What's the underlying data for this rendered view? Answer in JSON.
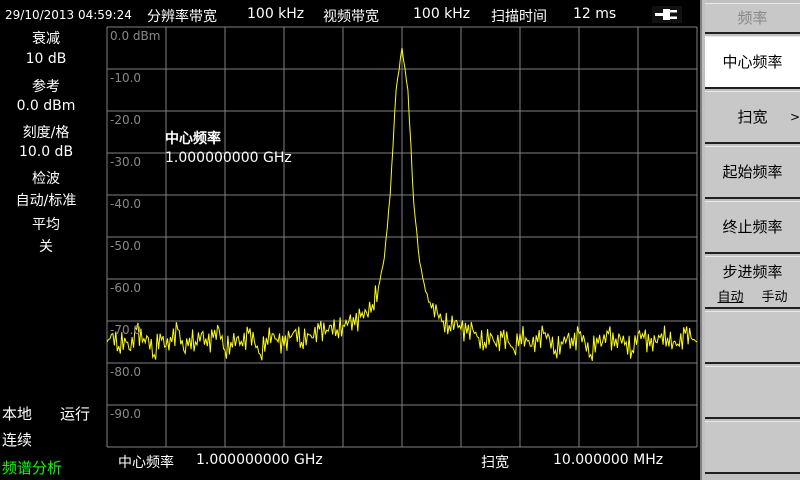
{
  "header": {
    "datetime": "29/10/2013  04:59:24",
    "rbw_label": "分辨率带宽",
    "rbw_value": "100 kHz",
    "vbw_label": "视频带宽",
    "vbw_value": "100 kHz",
    "sweep_time_label": "扫描时间",
    "sweep_time_value": "12 ms",
    "power_icon": "plug-icon"
  },
  "left_panel": {
    "atten_label": "衰减",
    "atten_value": "10 dB",
    "ref_label": "参考",
    "ref_value": "0.0 dBm",
    "scale_label": "刻度/格",
    "scale_value": "10.0 dB",
    "detector_label": "检波",
    "detector_value": "自动/标准",
    "average_label": "平均",
    "average_value": "关",
    "local": "本地",
    "run": "运行",
    "continuous": "连续",
    "mode": "频谱分析",
    "mode_color": "#00ff00"
  },
  "overlay": {
    "label": "中心频率",
    "value": "1.000000000 GHz"
  },
  "footer": {
    "center_label": "中心频率",
    "center_value": "1.000000000 GHz",
    "span_label": "扫宽",
    "span_value": "10.000000 MHz"
  },
  "softkeys": {
    "title": "频率",
    "items": [
      {
        "label": "中心频率",
        "active": true
      },
      {
        "label": "扫宽",
        "arrow": ">"
      },
      {
        "label": "起始频率"
      },
      {
        "label": "终止频率"
      },
      {
        "label": "步进频率",
        "opt1": "自动",
        "opt2": "手动"
      },
      {
        "label": ""
      },
      {
        "label": ""
      },
      {
        "label": ""
      }
    ]
  },
  "chart_data": {
    "type": "line",
    "trace_color": "#ffff00",
    "grid": true,
    "ylim": [
      -100,
      0
    ],
    "y_ticks": [
      "0.0 dBm",
      "-10.0",
      "-20.0",
      "-30.0",
      "-40.0",
      "-50.0",
      "-60.0",
      "-70.0",
      "-80.0",
      "-90.0"
    ],
    "x_range_mhz": [
      995,
      1005
    ],
    "values": [
      -75,
      -73,
      -76,
      -74,
      -77,
      -72,
      -75,
      -74,
      -78,
      -73,
      -76,
      -75,
      -72,
      -77,
      -74,
      -75,
      -73,
      -76,
      -74,
      -72,
      -77,
      -75,
      -74,
      -76,
      -73,
      -75,
      -78,
      -74,
      -73,
      -75,
      -76,
      -74,
      -72,
      -75,
      -73,
      -74,
      -72,
      -73,
      -71,
      -72,
      -71,
      -70,
      -71,
      -69,
      -68,
      -66,
      -62,
      -55,
      -40,
      -15,
      -5,
      -15,
      -42,
      -56,
      -63,
      -67,
      -68,
      -70,
      -71,
      -70,
      -72,
      -73,
      -72,
      -74,
      -75,
      -73,
      -76,
      -74,
      -75,
      -77,
      -73,
      -74,
      -76,
      -75,
      -73,
      -74,
      -77,
      -75,
      -74,
      -76,
      -73,
      -75,
      -78,
      -74,
      -75,
      -73,
      -76,
      -74,
      -75,
      -77,
      -73,
      -74,
      -76,
      -75,
      -73,
      -74,
      -75,
      -76,
      -73,
      -74,
      -75
    ]
  }
}
